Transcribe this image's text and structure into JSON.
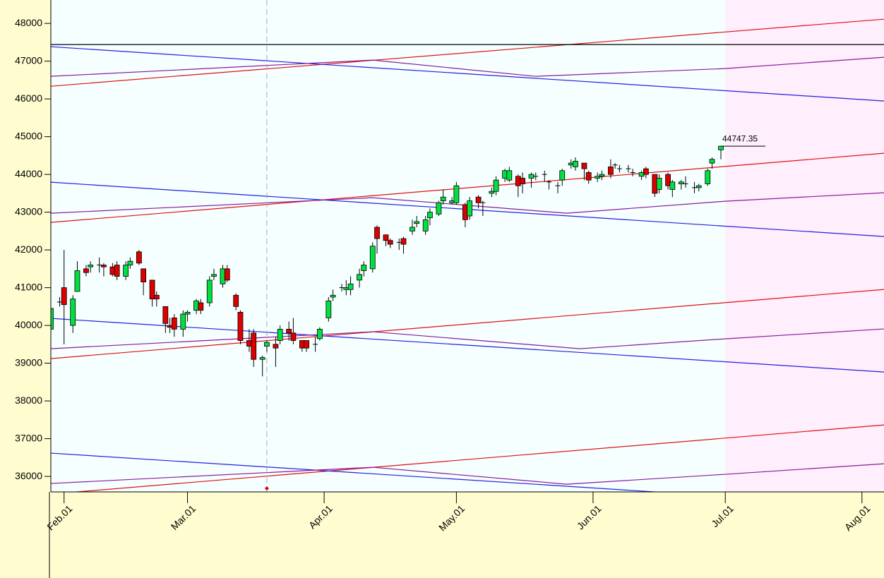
{
  "chart_data": {
    "type": "candlestick",
    "x": [
      "Jan.29",
      "Jan.31",
      "Feb.01",
      "Feb.03",
      "Feb.04",
      "Feb.06",
      "Feb.07",
      "Feb.09",
      "Feb.10",
      "Feb.12",
      "Feb.13",
      "Feb.15",
      "Feb.16",
      "Feb.18",
      "Feb.19",
      "Feb.21",
      "Feb.22",
      "Feb.24",
      "Feb.25",
      "Feb.26",
      "Feb.28",
      "Mar.01",
      "Mar.03",
      "Mar.04",
      "Mar.06",
      "Mar.07",
      "Mar.09",
      "Mar.10",
      "Mar.12",
      "Mar.13",
      "Mar.15",
      "Mar.16",
      "Mar.18",
      "Mar.19",
      "Mar.21",
      "Mar.22",
      "Mar.24",
      "Mar.25",
      "Mar.27",
      "Mar.28",
      "Mar.30",
      "Mar.31",
      "Apr.02",
      "Apr.03",
      "Apr.05",
      "Apr.06",
      "Apr.07",
      "Apr.09",
      "Apr.10",
      "Apr.12",
      "Apr.13",
      "Apr.15",
      "Apr.16",
      "Apr.18",
      "Apr.19",
      "Apr.21",
      "Apr.22",
      "Apr.24",
      "Apr.25",
      "Apr.27",
      "Apr.28",
      "Apr.30",
      "May.01",
      "May.03",
      "May.04",
      "May.06",
      "May.07",
      "May.09",
      "May.10",
      "May.12",
      "May.13",
      "May.15",
      "May.16",
      "May.18",
      "May.19",
      "May.21",
      "May.22",
      "May.24",
      "May.25",
      "May.27",
      "May.28",
      "May.30",
      "May.31",
      "Jun.02",
      "Jun.03",
      "Jun.05",
      "Jun.06",
      "Jun.07",
      "Jun.09",
      "Jun.10",
      "Jun.12",
      "Jun.13",
      "Jun.15",
      "Jun.16",
      "Jun.18",
      "Jun.19",
      "Jun.21",
      "Jun.22",
      "Jun.24",
      "Jun.25",
      "Jun.27",
      "Jun.28",
      "Jun.30"
    ],
    "open": [
      39900,
      40600,
      41000,
      40000,
      40900,
      41500,
      41550,
      41600,
      41600,
      41550,
      41600,
      41300,
      41600,
      41950,
      41500,
      41200,
      40800,
      40500,
      40000,
      40200,
      39900,
      40300,
      40400,
      40600,
      40600,
      41300,
      41100,
      41500,
      40800,
      40350,
      39600,
      39800,
      39100,
      39450,
      39500,
      39600,
      39900,
      39800,
      39600,
      39600,
      39500,
      39650,
      40200,
      40750,
      41000,
      40950,
      40950,
      41200,
      41450,
      41500,
      42600,
      42400,
      42250,
      42200,
      42300,
      42500,
      42700,
      42500,
      42850,
      42950,
      43300,
      43250,
      43250,
      43200,
      42900,
      43400,
      43250,
      43500,
      43550,
      43900,
      43850,
      43950,
      43900,
      43900,
      43950,
      44000,
      43800,
      43700,
      43850,
      44250,
      44200,
      44300,
      44050,
      43900,
      43950,
      44200,
      44250,
      44150,
      44150,
      44050,
      43950,
      44150,
      44000,
      43600,
      44000,
      43600,
      43750,
      43750,
      43650,
      43650,
      43750,
      44300,
      44650
    ],
    "high": [
      40800,
      40750,
      42000,
      40800,
      41700,
      41600,
      41700,
      41800,
      41650,
      41650,
      41700,
      41700,
      41800,
      42000,
      41500,
      41200,
      40900,
      40500,
      40200,
      40300,
      40400,
      40400,
      40700,
      40700,
      41300,
      41500,
      41600,
      41600,
      40850,
      40400,
      39900,
      39900,
      39200,
      39600,
      39700,
      40000,
      40100,
      40200,
      39600,
      39600,
      39700,
      39950,
      40750,
      40950,
      41100,
      41200,
      41300,
      41500,
      41700,
      42200,
      42650,
      42400,
      42300,
      42300,
      42350,
      42800,
      42900,
      42900,
      43100,
      43300,
      43600,
      43400,
      43800,
      43250,
      43400,
      43450,
      43300,
      43650,
      43950,
      44150,
      44200,
      44000,
      44050,
      44050,
      44050,
      44100,
      43850,
      43800,
      44150,
      44400,
      44450,
      44300,
      44100,
      44050,
      44100,
      44400,
      44300,
      44250,
      44250,
      44150,
      44100,
      44200,
      44000,
      44000,
      44050,
      43850,
      43850,
      43950,
      43800,
      43750,
      44150,
      44450,
      44750
    ],
    "low": [
      39400,
      40500,
      39500,
      39800,
      40900,
      41300,
      41400,
      41400,
      41300,
      41300,
      41200,
      41200,
      41500,
      41600,
      40800,
      40500,
      40500,
      39800,
      39800,
      39700,
      39700,
      40100,
      40300,
      40300,
      40500,
      41200,
      41000,
      41150,
      40400,
      39500,
      39300,
      38900,
      38650,
      39300,
      38900,
      39500,
      39600,
      39500,
      39300,
      39300,
      39300,
      39600,
      40100,
      40650,
      40900,
      40800,
      40800,
      41000,
      41300,
      41400,
      41900,
      42100,
      42050,
      42000,
      41900,
      42400,
      42600,
      42400,
      42650,
      42900,
      43200,
      43200,
      43200,
      42600,
      42800,
      43100,
      42900,
      43400,
      43450,
      43800,
      43800,
      43400,
      43500,
      43650,
      43850,
      43800,
      43600,
      43500,
      43700,
      44150,
      44100,
      43850,
      43750,
      43800,
      43850,
      43900,
      44150,
      44050,
      44050,
      43950,
      43850,
      43900,
      43400,
      43500,
      43600,
      43400,
      43600,
      43650,
      43500,
      43550,
      43700,
      44150,
      44400
    ],
    "close": [
      40450,
      40620,
      40550,
      40700,
      41450,
      41400,
      41600,
      41600,
      41550,
      41350,
      41300,
      41600,
      41700,
      41650,
      41150,
      40700,
      40700,
      40050,
      39950,
      39900,
      40300,
      40350,
      40650,
      40400,
      41200,
      41350,
      41500,
      41200,
      40500,
      39600,
      39450,
      39100,
      39150,
      39550,
      39400,
      39900,
      39800,
      39600,
      39400,
      39400,
      39500,
      39900,
      40650,
      40800,
      41000,
      41000,
      41100,
      41350,
      41600,
      42100,
      42300,
      42250,
      42150,
      42200,
      42150,
      42600,
      42750,
      42800,
      43000,
      43250,
      43400,
      43300,
      43700,
      42800,
      43300,
      43250,
      43250,
      43550,
      43850,
      44100,
      44100,
      43700,
      43750,
      44000,
      43950,
      44000,
      43800,
      43700,
      44100,
      44300,
      44350,
      44150,
      43850,
      43950,
      44000,
      44000,
      44250,
      44150,
      44150,
      44050,
      44050,
      44000,
      43500,
      43900,
      43700,
      43800,
      43800,
      43750,
      43650,
      43700,
      44100,
      44400,
      44747.35
    ],
    "up_color": "#00e040",
    "down_color": "#dd0000",
    "overlays": [
      {
        "color": "#e01010",
        "x": [
          "Jan.29",
          "Aug.06"
        ],
        "values": [
          46336,
          48112
        ]
      },
      {
        "color": "#e01010",
        "x": [
          "Jan.29",
          "Aug.06"
        ],
        "values": [
          42729,
          44561
        ]
      },
      {
        "color": "#e01010",
        "x": [
          "Jan.29",
          "Aug.06"
        ],
        "values": [
          39121,
          40953
        ]
      },
      {
        "color": "#e01010",
        "x": [
          "Jan.29",
          "Aug.06"
        ],
        "values": [
          35533,
          37364
        ]
      },
      {
        "color": "#2020e0",
        "x": [
          "Jan.29",
          "Aug.06"
        ],
        "values": [
          47383,
          45944
        ]
      },
      {
        "color": "#2020e0",
        "x": [
          "Jan.29",
          "Aug.06"
        ],
        "values": [
          43794,
          42355
        ]
      },
      {
        "color": "#2020e0",
        "x": [
          "Jan.29",
          "Aug.06"
        ],
        "values": [
          40187,
          38766
        ]
      },
      {
        "color": "#2020e0",
        "x": [
          "Jan.29",
          "Aug.06"
        ],
        "values": [
          36617,
          35200
        ]
      },
      {
        "color": "#8a1a9a",
        "x": [
          "Jan.29",
          "Apr.12",
          "May.19",
          "Jul.01",
          "Aug.06"
        ],
        "values": [
          46598,
          47028,
          46598,
          46804,
          47103
        ]
      },
      {
        "color": "#8a1a9a",
        "x": [
          "Jan.29",
          "Apr.12",
          "May.26",
          "Jul.01",
          "Aug.06"
        ],
        "values": [
          42972,
          43383,
          42972,
          43290,
          43514
        ]
      },
      {
        "color": "#8a1a9a",
        "x": [
          "Jan.29",
          "Apr.12",
          "May.29",
          "Jul.01",
          "Aug.06"
        ],
        "values": [
          39383,
          39832,
          39383,
          39645,
          39907
        ]
      },
      {
        "color": "#8a1a9a",
        "x": [
          "Jan.29",
          "Apr.12",
          "May.26",
          "Jul.01",
          "Aug.06"
        ],
        "values": [
          35813,
          36243,
          35794,
          36056,
          36336
        ]
      }
    ],
    "hline": 47440,
    "vline": "Mar.19",
    "shade_from": "Jul.01",
    "xlim": [
      "Jan.29",
      "Aug.06"
    ],
    "xticks": [
      "Feb.01",
      "Mar.01",
      "Apr.01",
      "May.01",
      "Jun.01",
      "Jul.01",
      "Aug.01"
    ],
    "ylim": [
      35590,
      48620
    ],
    "yticks": [
      36000,
      37000,
      38000,
      39000,
      40000,
      41000,
      42000,
      43000,
      44000,
      45000,
      46000,
      47000,
      48000
    ]
  }
}
